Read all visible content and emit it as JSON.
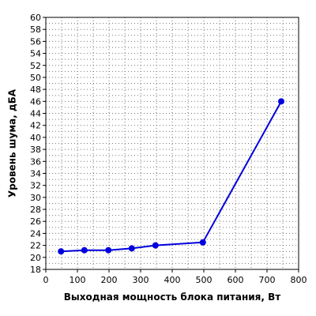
{
  "chart_data": {
    "type": "line",
    "title": "",
    "xlabel": "Выходная мощность блока питания, Вт",
    "ylabel": "Уровень шума, дБА",
    "xlim": [
      0,
      800
    ],
    "ylim": [
      18,
      60
    ],
    "x_ticks": [
      0,
      100,
      200,
      300,
      400,
      500,
      600,
      700,
      800
    ],
    "y_ticks": [
      18,
      20,
      22,
      24,
      26,
      28,
      30,
      32,
      34,
      36,
      38,
      40,
      42,
      44,
      46,
      48,
      50,
      52,
      54,
      56,
      58,
      60
    ],
    "grid": true,
    "grid_style": "dotted",
    "legend": "none",
    "series": [
      {
        "color": "#0000dd",
        "marker": "circle",
        "x": [
          48,
          122,
          198,
          272,
          347,
          497,
          745
        ],
        "y": [
          21.0,
          21.2,
          21.2,
          21.5,
          22.0,
          22.5,
          46.0
        ]
      }
    ]
  }
}
